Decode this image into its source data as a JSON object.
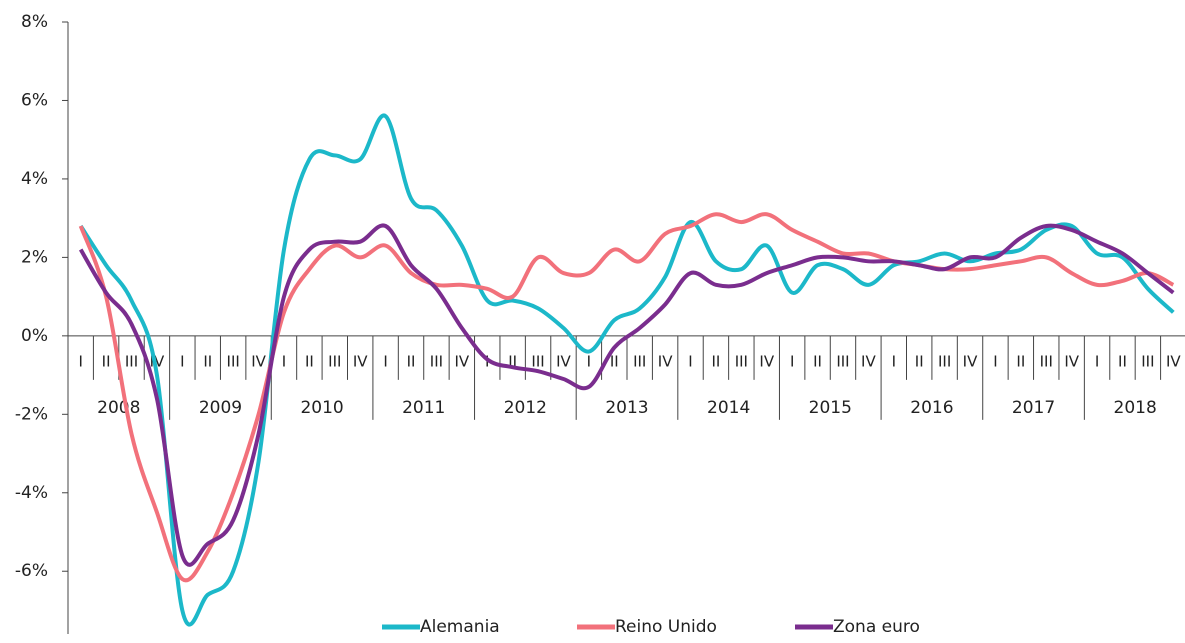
{
  "chart_data": {
    "type": "line",
    "categories": [
      "I",
      "II",
      "III",
      "IV",
      "I",
      "II",
      "III",
      "IV",
      "I",
      "II",
      "III",
      "IV",
      "I",
      "II",
      "III",
      "IV",
      "I",
      "II",
      "III",
      "IV",
      "I",
      "II",
      "III",
      "IV",
      "I",
      "II",
      "III",
      "IV",
      "I",
      "II",
      "III",
      "IV",
      "I",
      "II",
      "III",
      "IV",
      "I",
      "II",
      "III",
      "IV",
      "I",
      "II",
      "III",
      "IV"
    ],
    "years": [
      "2008",
      "2009",
      "2010",
      "2011",
      "2012",
      "2013",
      "2014",
      "2015",
      "2016",
      "2017",
      "2018"
    ],
    "ylim": [
      -7.6,
      8
    ],
    "yticks": [
      {
        "value": -6,
        "label": "-6%"
      },
      {
        "value": -4,
        "label": "-4%"
      },
      {
        "value": -2,
        "label": "-2%"
      },
      {
        "value": 0,
        "label": "0%"
      },
      {
        "value": 2,
        "label": "2%"
      },
      {
        "value": 4,
        "label": "4%"
      },
      {
        "value": 6,
        "label": "6%"
      },
      {
        "value": 8,
        "label": "8%"
      }
    ],
    "legend": "bottom",
    "series": [
      {
        "name": "Alemania",
        "color": "#1cb8c9",
        "values": [
          2.8,
          1.8,
          0.9,
          -1.0,
          -7.0,
          -6.6,
          -6.0,
          -3.2,
          2.2,
          4.5,
          4.6,
          4.5,
          5.6,
          3.5,
          3.2,
          2.3,
          0.9,
          0.9,
          0.7,
          0.2,
          -0.4,
          0.4,
          0.7,
          1.5,
          2.9,
          1.9,
          1.7,
          2.3,
          1.1,
          1.8,
          1.7,
          1.3,
          1.8,
          1.9,
          2.1,
          1.9,
          2.1,
          2.2,
          2.7,
          2.8,
          2.1,
          2.0,
          1.2,
          0.6
        ]
      },
      {
        "name": "Reino Unido",
        "color": "#f2717b",
        "values": [
          2.8,
          1.0,
          -2.5,
          -4.5,
          -6.2,
          -5.5,
          -4.0,
          -2.0,
          0.6,
          1.7,
          2.3,
          2.0,
          2.3,
          1.6,
          1.3,
          1.3,
          1.2,
          1.0,
          2.0,
          1.6,
          1.6,
          2.2,
          1.9,
          2.6,
          2.8,
          3.1,
          2.9,
          3.1,
          2.7,
          2.4,
          2.1,
          2.1,
          1.9,
          1.8,
          1.7,
          1.7,
          1.8,
          1.9,
          2.0,
          1.6,
          1.3,
          1.4,
          1.6,
          1.3
        ]
      },
      {
        "name": "Zona euro",
        "color": "#7a2d8e",
        "values": [
          2.2,
          1.1,
          0.3,
          -1.6,
          -5.6,
          -5.3,
          -4.7,
          -2.5,
          1.0,
          2.2,
          2.4,
          2.4,
          2.8,
          1.8,
          1.2,
          0.2,
          -0.6,
          -0.8,
          -0.9,
          -1.1,
          -1.3,
          -0.3,
          0.2,
          0.8,
          1.6,
          1.3,
          1.3,
          1.6,
          1.8,
          2.0,
          2.0,
          1.9,
          1.9,
          1.8,
          1.7,
          2.0,
          2.0,
          2.5,
          2.8,
          2.7,
          2.4,
          2.1,
          1.6,
          1.1
        ]
      }
    ]
  }
}
